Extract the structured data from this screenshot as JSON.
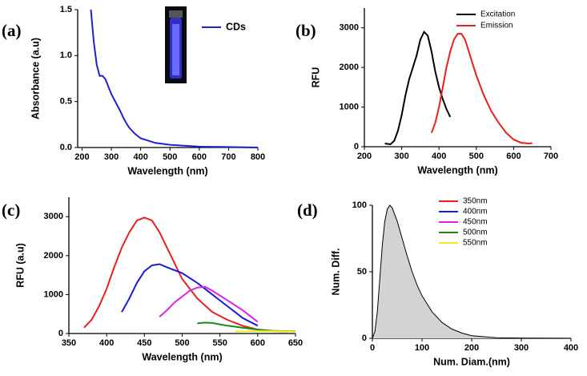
{
  "chart_data": [
    {
      "type": "line",
      "panel_label": "(a)",
      "x_label": "Wavelength (nm)",
      "y_label": "Absorbance (a.u)",
      "xlim": [
        185,
        800
      ],
      "ylim": [
        0,
        1.5
      ],
      "xticks": [
        200,
        300,
        400,
        500,
        600,
        700,
        800
      ],
      "yticks": [
        {
          "value": 0,
          "label": "0.0"
        },
        0.5,
        {
          "value": 1,
          "label": "1.0"
        },
        1.5
      ],
      "series": [
        {
          "name": "CDs",
          "color": "#2020d0",
          "x": [
            230,
            240,
            250,
            260,
            270,
            280,
            290,
            300,
            310,
            320,
            330,
            340,
            350,
            360,
            380,
            400,
            450,
            500,
            550,
            600,
            700,
            800
          ],
          "values": [
            1.5,
            1.15,
            0.9,
            0.78,
            0.78,
            0.74,
            0.66,
            0.58,
            0.52,
            0.46,
            0.4,
            0.33,
            0.27,
            0.22,
            0.15,
            0.1,
            0.05,
            0.03,
            0.02,
            0.01,
            0.005,
            0
          ]
        }
      ]
    },
    {
      "type": "line",
      "panel_label": "(b)",
      "x_label": "Wavelength (nm)",
      "y_label": "RFU",
      "xlim": [
        200,
        700
      ],
      "ylim": [
        0,
        3500
      ],
      "xticks": [
        200,
        300,
        400,
        500,
        600,
        700
      ],
      "yticks": [
        0,
        1000,
        2000,
        3000
      ],
      "series": [
        {
          "name": "Excitation",
          "color": "#000000",
          "x": [
            255,
            270,
            280,
            290,
            300,
            310,
            320,
            330,
            340,
            350,
            360,
            370,
            380,
            390,
            400,
            410,
            420,
            430
          ],
          "values": [
            80,
            60,
            150,
            400,
            800,
            1300,
            1700,
            2000,
            2300,
            2700,
            2900,
            2800,
            2400,
            1900,
            1500,
            1200,
            950,
            750
          ]
        },
        {
          "name": "Emission",
          "color": "#e8201e",
          "x": [
            380,
            390,
            400,
            410,
            420,
            430,
            440,
            450,
            460,
            470,
            480,
            490,
            500,
            520,
            540,
            560,
            580,
            600,
            620,
            640,
            650
          ],
          "values": [
            350,
            600,
            1000,
            1500,
            2000,
            2400,
            2700,
            2850,
            2850,
            2700,
            2400,
            2100,
            1800,
            1300,
            900,
            600,
            350,
            180,
            100,
            80,
            90
          ]
        }
      ]
    },
    {
      "type": "line",
      "panel_label": "(c)",
      "x_label": "Wavelength (nm)",
      "y_label": "RFU (a.u)",
      "xlim": [
        350,
        650
      ],
      "ylim": [
        0,
        3500
      ],
      "xticks": [
        350,
        400,
        450,
        500,
        550,
        600,
        650
      ],
      "yticks": [
        0,
        1000,
        2000,
        3000
      ],
      "series": [
        {
          "name": "350nm",
          "color": "#e8201e",
          "x": [
            370,
            380,
            390,
            400,
            410,
            420,
            430,
            440,
            450,
            460,
            470,
            480,
            490,
            500,
            520,
            540,
            560,
            580,
            600,
            620,
            640
          ],
          "values": [
            150,
            350,
            700,
            1150,
            1700,
            2200,
            2600,
            2900,
            2980,
            2900,
            2600,
            2200,
            1800,
            1400,
            900,
            550,
            350,
            200,
            100,
            60,
            50
          ]
        },
        {
          "name": "400nm",
          "color": "#1a1ae0",
          "x": [
            420,
            430,
            440,
            450,
            460,
            470,
            480,
            500,
            520,
            540,
            560,
            580,
            600
          ],
          "values": [
            550,
            900,
            1300,
            1600,
            1750,
            1780,
            1700,
            1550,
            1300,
            1000,
            700,
            400,
            200
          ]
        },
        {
          "name": "450nm",
          "color": "#e020e0",
          "x": [
            470,
            480,
            490,
            500,
            510,
            520,
            530,
            540,
            560,
            580,
            600
          ],
          "values": [
            430,
            600,
            800,
            950,
            1100,
            1180,
            1200,
            1100,
            850,
            600,
            300
          ]
        },
        {
          "name": "500nm",
          "color": "#1a8a1a",
          "x": [
            520,
            530,
            540,
            560,
            580,
            600,
            620,
            640,
            650
          ],
          "values": [
            260,
            280,
            270,
            200,
            150,
            100,
            70,
            60,
            60
          ]
        },
        {
          "name": "550nm",
          "color": "#f0f020",
          "x": [
            570,
            590,
            610,
            630,
            650
          ],
          "values": [
            50,
            60,
            60,
            55,
            50
          ]
        }
      ]
    },
    {
      "type": "area",
      "panel_label": "(d)",
      "x_label": "Num. Diam.(nm)",
      "y_label": "Num. Diff.",
      "xlim": [
        0,
        400
      ],
      "ylim": [
        0,
        100
      ],
      "xticks": [
        0,
        100,
        200,
        300,
        400
      ],
      "yticks": [
        0,
        50,
        100
      ],
      "series": [
        {
          "name": "Num. Diff.",
          "color": "#000000",
          "fill": "#d3d3d3",
          "x": [
            0,
            5,
            10,
            15,
            20,
            25,
            30,
            35,
            40,
            50,
            60,
            70,
            80,
            90,
            100,
            120,
            140,
            160,
            180,
            200,
            250,
            300,
            400
          ],
          "values": [
            0,
            5,
            20,
            45,
            70,
            88,
            97,
            100,
            98,
            88,
            75,
            62,
            50,
            40,
            32,
            20,
            12,
            7,
            4,
            2,
            0.5,
            0.1,
            0
          ]
        }
      ]
    }
  ]
}
